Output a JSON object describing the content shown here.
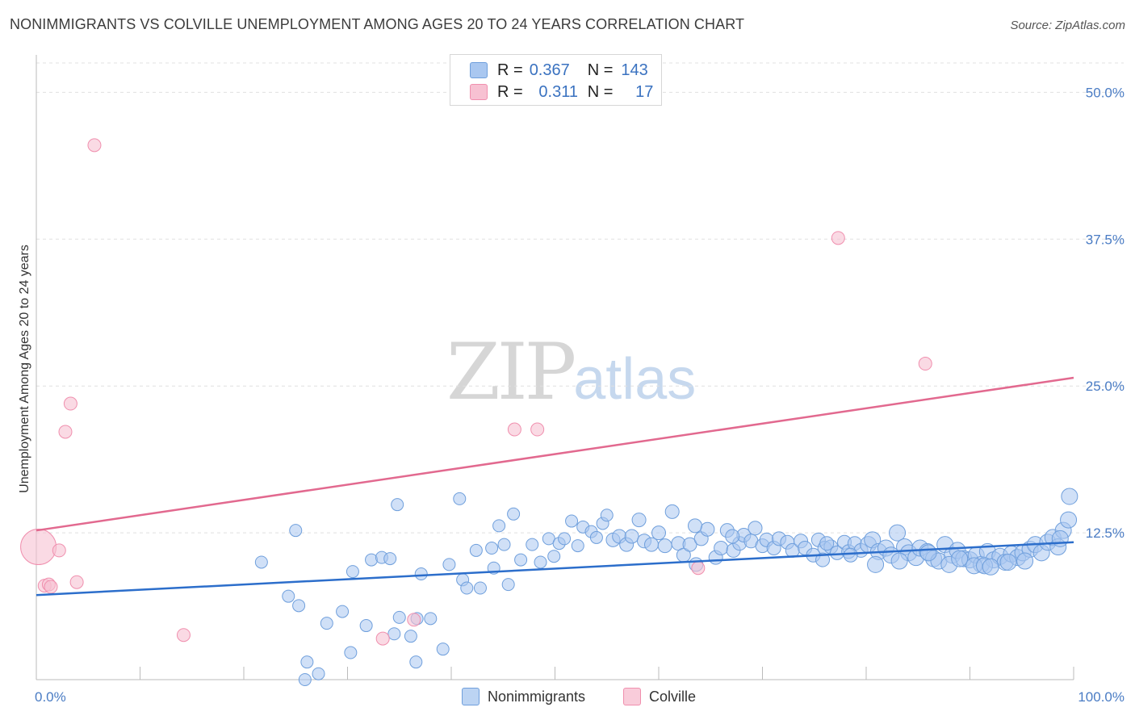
{
  "title": "NONIMMIGRANTS VS COLVILLE UNEMPLOYMENT AMONG AGES 20 TO 24 YEARS CORRELATION CHART",
  "source": "Source: ZipAtlas.com",
  "watermark": {
    "zip": "ZIP",
    "atlas": "atlas"
  },
  "legend": {
    "rows": [
      {
        "r_label": "R =",
        "r_value": "0.367",
        "n_label": "N =",
        "n_value": "143",
        "color": "#a9c7f0"
      },
      {
        "r_label": "R =",
        "r_value": "0.311",
        "n_label": "N =",
        "n_value": "17",
        "color": "#f7b6c9"
      }
    ]
  },
  "bottom_legend": {
    "series1": "Nonimmigrants",
    "series2": "Colville"
  },
  "chart_data": {
    "type": "scatter",
    "title": "NONIMMIGRANTS VS COLVILLE UNEMPLOYMENT AMONG AGES 20 TO 24 YEARS CORRELATION CHART",
    "xlabel": "",
    "ylabel": "Unemployment Among Ages 20 to 24 years",
    "xlim": [
      0,
      100
    ],
    "ylim": [
      0,
      52.5
    ],
    "x_tick_labels": [
      "0.0%",
      "100.0%"
    ],
    "y_ticks": [
      12.5,
      25.0,
      37.5,
      50.0
    ],
    "y_tick_labels": [
      "12.5%",
      "25.0%",
      "37.5%",
      "50.0%"
    ],
    "grid": true,
    "colors": {
      "nonimmigrants": "#6f9fdc",
      "nonimmigrants_fill": "#a9c7f0",
      "colville": "#f08fae",
      "colville_fill": "#f7c1d2",
      "trend_blue": "#2c6ecb",
      "trend_pink": "#e2698f"
    },
    "series": [
      {
        "name": "Nonimmigrants",
        "trend": {
          "x": [
            0,
            100
          ],
          "y": [
            7.2,
            11.7
          ]
        },
        "points": [
          [
            21.7,
            10.0
          ],
          [
            25.0,
            12.7
          ],
          [
            30.5,
            9.2
          ],
          [
            28.0,
            4.8
          ],
          [
            24.3,
            7.1
          ],
          [
            31.8,
            4.6
          ],
          [
            26.1,
            1.5
          ],
          [
            25.3,
            6.3
          ],
          [
            25.9,
            0.0
          ],
          [
            27.2,
            0.5
          ],
          [
            29.5,
            5.8
          ],
          [
            30.3,
            2.3
          ],
          [
            32.3,
            10.2
          ],
          [
            33.3,
            10.4
          ],
          [
            34.1,
            10.3
          ],
          [
            34.5,
            3.9
          ],
          [
            35.0,
            5.3
          ],
          [
            34.8,
            14.9
          ],
          [
            36.1,
            3.7
          ],
          [
            36.7,
            5.2
          ],
          [
            37.1,
            9.0
          ],
          [
            36.6,
            1.5
          ],
          [
            38.0,
            5.2
          ],
          [
            39.2,
            2.6
          ],
          [
            39.8,
            9.8
          ],
          [
            40.8,
            15.4
          ],
          [
            41.1,
            8.5
          ],
          [
            41.5,
            7.8
          ],
          [
            42.4,
            11.0
          ],
          [
            42.8,
            7.8
          ],
          [
            44.1,
            9.5
          ],
          [
            44.6,
            13.1
          ],
          [
            43.9,
            11.2
          ],
          [
            45.1,
            11.5
          ],
          [
            45.5,
            8.1
          ],
          [
            46.0,
            14.1
          ],
          [
            46.7,
            10.2
          ],
          [
            47.8,
            11.5
          ],
          [
            48.6,
            10.0
          ],
          [
            49.4,
            12.0
          ],
          [
            49.9,
            10.5
          ],
          [
            50.4,
            11.6
          ],
          [
            50.9,
            12.0
          ],
          [
            51.6,
            13.5
          ],
          [
            52.2,
            11.4
          ],
          [
            52.7,
            13.0
          ],
          [
            53.5,
            12.6
          ],
          [
            54.0,
            12.1
          ],
          [
            54.6,
            13.3
          ],
          [
            55.0,
            14.0
          ],
          [
            55.6,
            11.9
          ],
          [
            56.2,
            12.2
          ],
          [
            56.9,
            11.5
          ],
          [
            57.4,
            12.2
          ],
          [
            58.1,
            13.6
          ],
          [
            58.6,
            11.8
          ],
          [
            59.3,
            11.5
          ],
          [
            60.0,
            12.5
          ],
          [
            60.6,
            11.4
          ],
          [
            61.3,
            14.3
          ],
          [
            61.9,
            11.6
          ],
          [
            62.4,
            10.6
          ],
          [
            63.0,
            11.5
          ],
          [
            63.6,
            9.8
          ],
          [
            64.1,
            12.0
          ],
          [
            64.7,
            12.8
          ],
          [
            65.5,
            10.4
          ],
          [
            66.0,
            11.2
          ],
          [
            66.6,
            12.7
          ],
          [
            67.2,
            11.0
          ],
          [
            67.8,
            11.6
          ],
          [
            68.2,
            12.3
          ],
          [
            68.9,
            11.8
          ],
          [
            69.3,
            12.9
          ],
          [
            70.0,
            11.4
          ],
          [
            70.4,
            11.9
          ],
          [
            71.1,
            11.2
          ],
          [
            71.6,
            12.0
          ],
          [
            72.4,
            11.7
          ],
          [
            72.9,
            11.0
          ],
          [
            73.7,
            11.8
          ],
          [
            74.1,
            11.2
          ],
          [
            74.9,
            10.6
          ],
          [
            75.4,
            11.9
          ],
          [
            76.0,
            11.2
          ],
          [
            76.6,
            11.3
          ],
          [
            77.2,
            10.8
          ],
          [
            77.9,
            11.7
          ],
          [
            78.3,
            10.9
          ],
          [
            78.9,
            11.6
          ],
          [
            79.5,
            11.0
          ],
          [
            80.2,
            11.5
          ],
          [
            80.6,
            11.9
          ],
          [
            81.2,
            10.9
          ],
          [
            81.9,
            11.2
          ],
          [
            82.4,
            10.6
          ],
          [
            83.0,
            12.5
          ],
          [
            83.7,
            11.3
          ],
          [
            84.1,
            10.8
          ],
          [
            84.8,
            10.4
          ],
          [
            85.2,
            11.2
          ],
          [
            85.9,
            10.9
          ],
          [
            86.5,
            10.3
          ],
          [
            87.0,
            10.1
          ],
          [
            87.6,
            11.5
          ],
          [
            88.3,
            10.6
          ],
          [
            88.8,
            11.0
          ],
          [
            89.4,
            10.3
          ],
          [
            90.0,
            10.2
          ],
          [
            90.6,
            10.6
          ],
          [
            91.1,
            9.8
          ],
          [
            91.7,
            10.9
          ],
          [
            92.3,
            10.2
          ],
          [
            92.9,
            10.5
          ],
          [
            93.4,
            10.0
          ],
          [
            94.0,
            10.7
          ],
          [
            94.6,
            10.4
          ],
          [
            95.1,
            10.8
          ],
          [
            95.8,
            11.1
          ],
          [
            96.3,
            11.5
          ],
          [
            96.9,
            10.8
          ],
          [
            97.5,
            11.7
          ],
          [
            98.0,
            12.1
          ],
          [
            98.5,
            11.3
          ],
          [
            99.0,
            12.7
          ],
          [
            99.5,
            13.6
          ],
          [
            99.6,
            15.6
          ],
          [
            63.5,
            13.1
          ],
          [
            67.1,
            12.2
          ],
          [
            75.8,
            10.2
          ],
          [
            76.2,
            11.6
          ],
          [
            78.5,
            10.6
          ],
          [
            80.9,
            9.8
          ],
          [
            83.2,
            10.1
          ],
          [
            86.0,
            10.8
          ],
          [
            88.0,
            9.8
          ],
          [
            89.0,
            10.3
          ],
          [
            90.4,
            9.7
          ],
          [
            91.4,
            9.7
          ],
          [
            92.0,
            9.6
          ],
          [
            93.7,
            10.0
          ],
          [
            95.3,
            10.1
          ],
          [
            98.7,
            12.0
          ]
        ]
      },
      {
        "name": "Colville",
        "trend": {
          "x": [
            0,
            100
          ],
          "y": [
            12.7,
            25.7
          ]
        },
        "points": [
          [
            0.2,
            11.3
          ],
          [
            0.8,
            8.0
          ],
          [
            1.2,
            8.1
          ],
          [
            1.4,
            7.9
          ],
          [
            2.2,
            11.0
          ],
          [
            2.8,
            21.1
          ],
          [
            3.3,
            23.5
          ],
          [
            3.9,
            8.3
          ],
          [
            5.6,
            45.5
          ],
          [
            14.2,
            3.8
          ],
          [
            33.4,
            3.5
          ],
          [
            36.4,
            5.1
          ],
          [
            46.1,
            21.3
          ],
          [
            48.3,
            21.3
          ],
          [
            63.8,
            9.5
          ],
          [
            77.3,
            37.6
          ],
          [
            85.7,
            26.9
          ]
        ],
        "sizes": [
          22,
          8,
          8,
          8,
          8,
          8,
          8,
          8,
          8,
          8,
          8,
          8,
          8,
          8,
          8,
          8,
          8
        ]
      }
    ]
  }
}
